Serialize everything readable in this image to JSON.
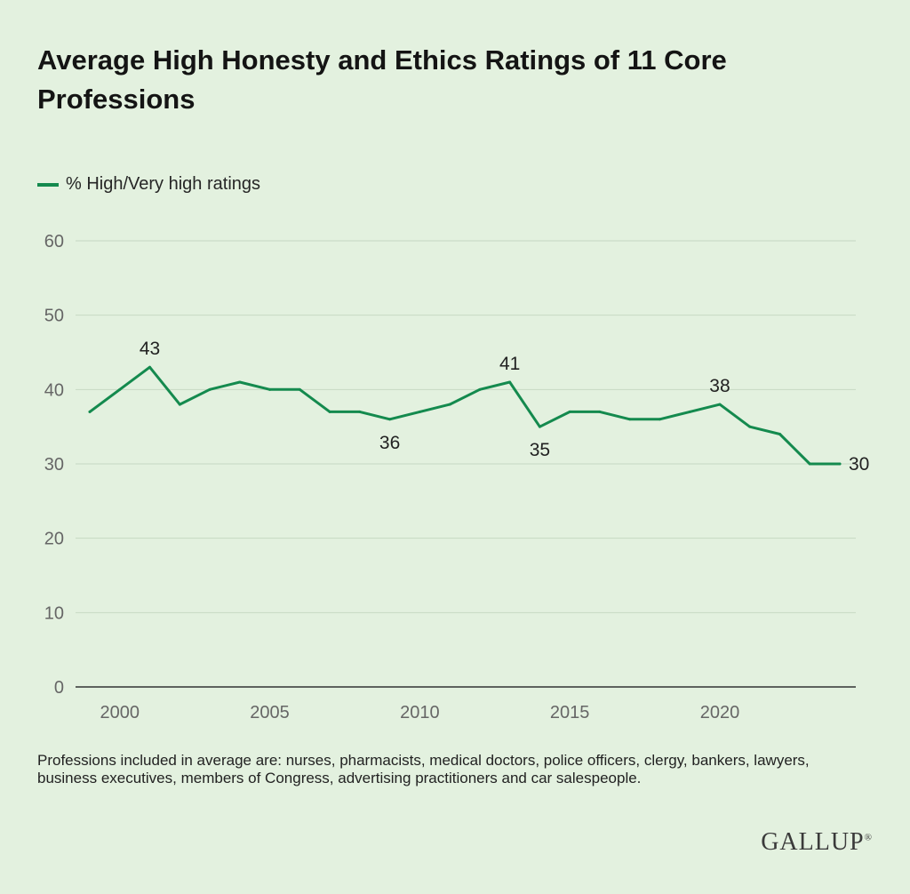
{
  "title": "Average High Honesty and Ethics Ratings of 11 Core Professions",
  "note": "Professions included in average are: nurses, pharmacists, medical doctors, police officers, clergy, bankers, lawyers, business executives, members of Congress, advertising practitioners and car salespeople.",
  "logo": {
    "text": "GALLUP",
    "mark": "®"
  },
  "colors": {
    "line": "#148a4e",
    "background": "#e3f1df",
    "grid": "#c6d8c3"
  },
  "chart_data": {
    "type": "line",
    "title": "Average High Honesty and Ethics Ratings of 11 Core Professions",
    "xlabel": "",
    "ylabel": "",
    "legend": "top-left",
    "grid": true,
    "xlim": [
      1999,
      2024
    ],
    "ylim": [
      0,
      60
    ],
    "y_ticks": [
      0,
      10,
      20,
      30,
      40,
      50,
      60
    ],
    "x_ticks": [
      2000,
      2005,
      2010,
      2015,
      2020
    ],
    "series": [
      {
        "name": "% High/Very high ratings",
        "color": "#148a4e",
        "x": [
          1999,
          2000,
          2001,
          2002,
          2003,
          2004,
          2005,
          2006,
          2007,
          2008,
          2009,
          2010,
          2011,
          2012,
          2013,
          2014,
          2015,
          2016,
          2017,
          2018,
          2019,
          2020,
          2021,
          2022,
          2023,
          2024
        ],
        "values": [
          37,
          40,
          43,
          38,
          40,
          41,
          40,
          40,
          37,
          37,
          36,
          37,
          38,
          40,
          41,
          35,
          37,
          37,
          36,
          36,
          37,
          38,
          35,
          34,
          30,
          30
        ]
      }
    ],
    "annotations": [
      {
        "x": 2001,
        "y": 43,
        "label": "43",
        "position": "above"
      },
      {
        "x": 2009,
        "y": 36,
        "label": "36",
        "position": "below"
      },
      {
        "x": 2013,
        "y": 41,
        "label": "41",
        "position": "above"
      },
      {
        "x": 2014,
        "y": 35,
        "label": "35",
        "position": "below"
      },
      {
        "x": 2020,
        "y": 38,
        "label": "38",
        "position": "above"
      },
      {
        "x": 2024,
        "y": 30,
        "label": "30",
        "position": "right"
      }
    ]
  }
}
